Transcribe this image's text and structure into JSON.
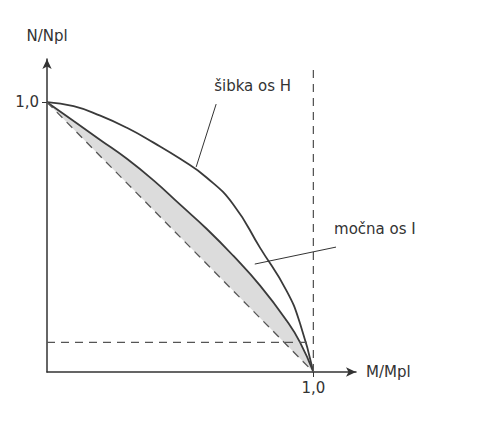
{
  "chart_data": {
    "type": "line",
    "xlabel": "M/Mpl",
    "ylabel": "N/Npl",
    "xlim": [
      0,
      1.16
    ],
    "ylim": [
      0,
      1.16
    ],
    "xticks": [
      {
        "value": 1,
        "label": "1,0"
      }
    ],
    "yticks": [
      {
        "value": 1,
        "label": "1,0"
      }
    ],
    "grid": false,
    "series": [
      {
        "type": "band",
        "color": "#8a8a8a",
        "x": [
          0,
          0.1,
          0.2,
          0.3,
          0.4,
          0.5,
          0.6,
          0.7,
          0.8,
          0.9,
          0.95,
          1.0
        ],
        "values": [
          1,
          0.93,
          0.86,
          0.79,
          0.71,
          0.62,
          0.53,
          0.43,
          0.32,
          0.19,
          0.11,
          0
        ],
        "lower": [
          1,
          0.9,
          0.8,
          0.7,
          0.6,
          0.5,
          0.4,
          0.3,
          0.2,
          0.1,
          0.05,
          0
        ]
      },
      {
        "type": "line",
        "color": "#3a3a3a",
        "line_style": "solid",
        "x": [
          0,
          0.1,
          0.2,
          0.3,
          0.4,
          0.5,
          0.6,
          0.7,
          0.8,
          0.9,
          0.95,
          1.0
        ],
        "values": [
          1,
          0.985,
          0.95,
          0.905,
          0.85,
          0.79,
          0.72,
          0.62,
          0.46,
          0.3,
          0.18,
          0
        ]
      },
      {
        "type": "line",
        "color": "#3a3a3a",
        "line_style": "solid",
        "x": [
          0,
          0.1,
          0.2,
          0.3,
          0.4,
          0.5,
          0.6,
          0.7,
          0.8,
          0.9,
          0.95,
          1.0
        ],
        "values": [
          1,
          0.93,
          0.86,
          0.79,
          0.71,
          0.62,
          0.53,
          0.43,
          0.32,
          0.19,
          0.11,
          0
        ]
      },
      {
        "type": "line",
        "color": "#555555",
        "line_style": "dashed",
        "x": [
          0,
          1
        ],
        "values": [
          1,
          0
        ]
      },
      {
        "type": "line",
        "color": "#555555",
        "line_style": "dashed",
        "x": [
          1,
          1
        ],
        "values": [
          0,
          1.14
        ]
      },
      {
        "type": "line",
        "color": "#555555",
        "line_style": "dashed",
        "x": [
          0,
          1
        ],
        "values": [
          0.11,
          0.11
        ]
      }
    ],
    "annotations": [
      {
        "text": "šibka os H",
        "x": 0.62,
        "y": 1.03,
        "point": [
          0.56,
          0.76
        ]
      },
      {
        "text": "močna os I",
        "x": 1.07,
        "y": 0.5,
        "point": [
          0.78,
          0.4
        ]
      }
    ]
  }
}
